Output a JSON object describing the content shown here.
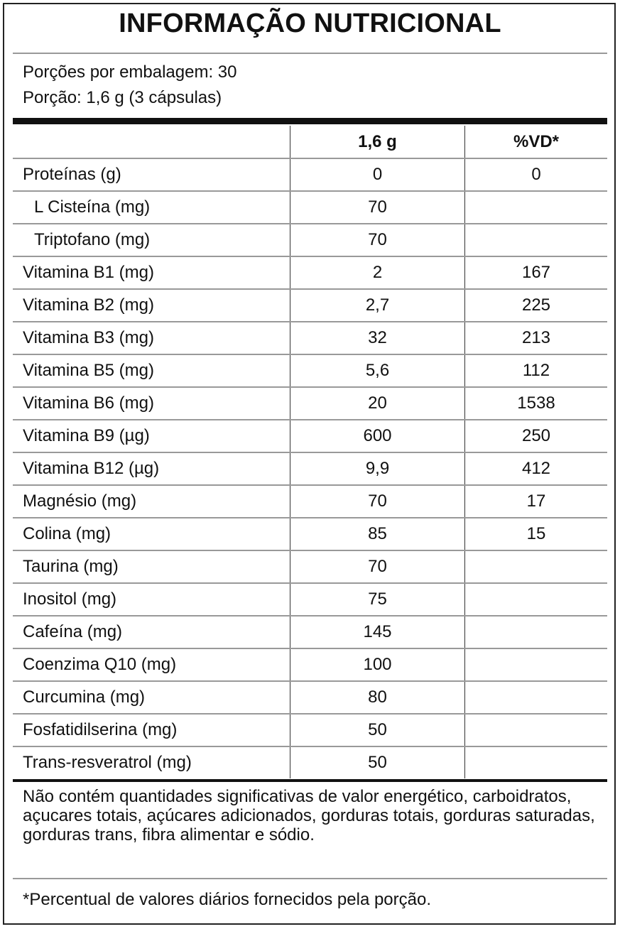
{
  "title": "INFORMAÇÃO NUTRICIONAL",
  "servings_per_package": "Porções por embalagem: 30",
  "serving_size": "Porção: 1,6 g (3 cápsulas)",
  "table": {
    "headers": [
      "",
      "1,6 g",
      "%VD*"
    ],
    "rows": [
      {
        "name": "Proteínas (g)",
        "amount": "0",
        "vd": "0",
        "indent": false
      },
      {
        "name": "L Cisteína (mg)",
        "amount": "70",
        "vd": "",
        "indent": true
      },
      {
        "name": "Triptofano (mg)",
        "amount": "70",
        "vd": "",
        "indent": true
      },
      {
        "name": "Vitamina B1 (mg)",
        "amount": "2",
        "vd": "167",
        "indent": false
      },
      {
        "name": "Vitamina B2 (mg)",
        "amount": "2,7",
        "vd": "225",
        "indent": false
      },
      {
        "name": "Vitamina B3 (mg)",
        "amount": "32",
        "vd": "213",
        "indent": false
      },
      {
        "name": "Vitamina B5 (mg)",
        "amount": "5,6",
        "vd": "112",
        "indent": false
      },
      {
        "name": "Vitamina B6 (mg)",
        "amount": "20",
        "vd": "1538",
        "indent": false
      },
      {
        "name": "Vitamina B9 (µg)",
        "amount": "600",
        "vd": "250",
        "indent": false
      },
      {
        "name": "Vitamina B12 (µg)",
        "amount": "9,9",
        "vd": "412",
        "indent": false
      },
      {
        "name": "Magnésio (mg)",
        "amount": "70",
        "vd": "17",
        "indent": false
      },
      {
        "name": "Colina (mg)",
        "amount": "85",
        "vd": "15",
        "indent": false
      },
      {
        "name": "Taurina (mg)",
        "amount": "70",
        "vd": "",
        "indent": false
      },
      {
        "name": "Inositol (mg)",
        "amount": "75",
        "vd": "",
        "indent": false
      },
      {
        "name": "Cafeína (mg)",
        "amount": "145",
        "vd": "",
        "indent": false
      },
      {
        "name": "Coenzima Q10 (mg)",
        "amount": "100",
        "vd": "",
        "indent": false
      },
      {
        "name": "Curcumina (mg)",
        "amount": "80",
        "vd": "",
        "indent": false
      },
      {
        "name": "Fosfatidilserina (mg)",
        "amount": "50",
        "vd": "",
        "indent": false
      },
      {
        "name": "Trans-resveratrol (mg)",
        "amount": "50",
        "vd": "",
        "indent": false
      }
    ]
  },
  "note": "Não contém quantidades significativas de valor energético, carboidratos, açucares totais, açúcares adicionados, gorduras totais, gorduras saturadas, gorduras trans, fibra alimentar e sódio.",
  "footnote": "*Percentual de valores diários fornecidos pela porção."
}
